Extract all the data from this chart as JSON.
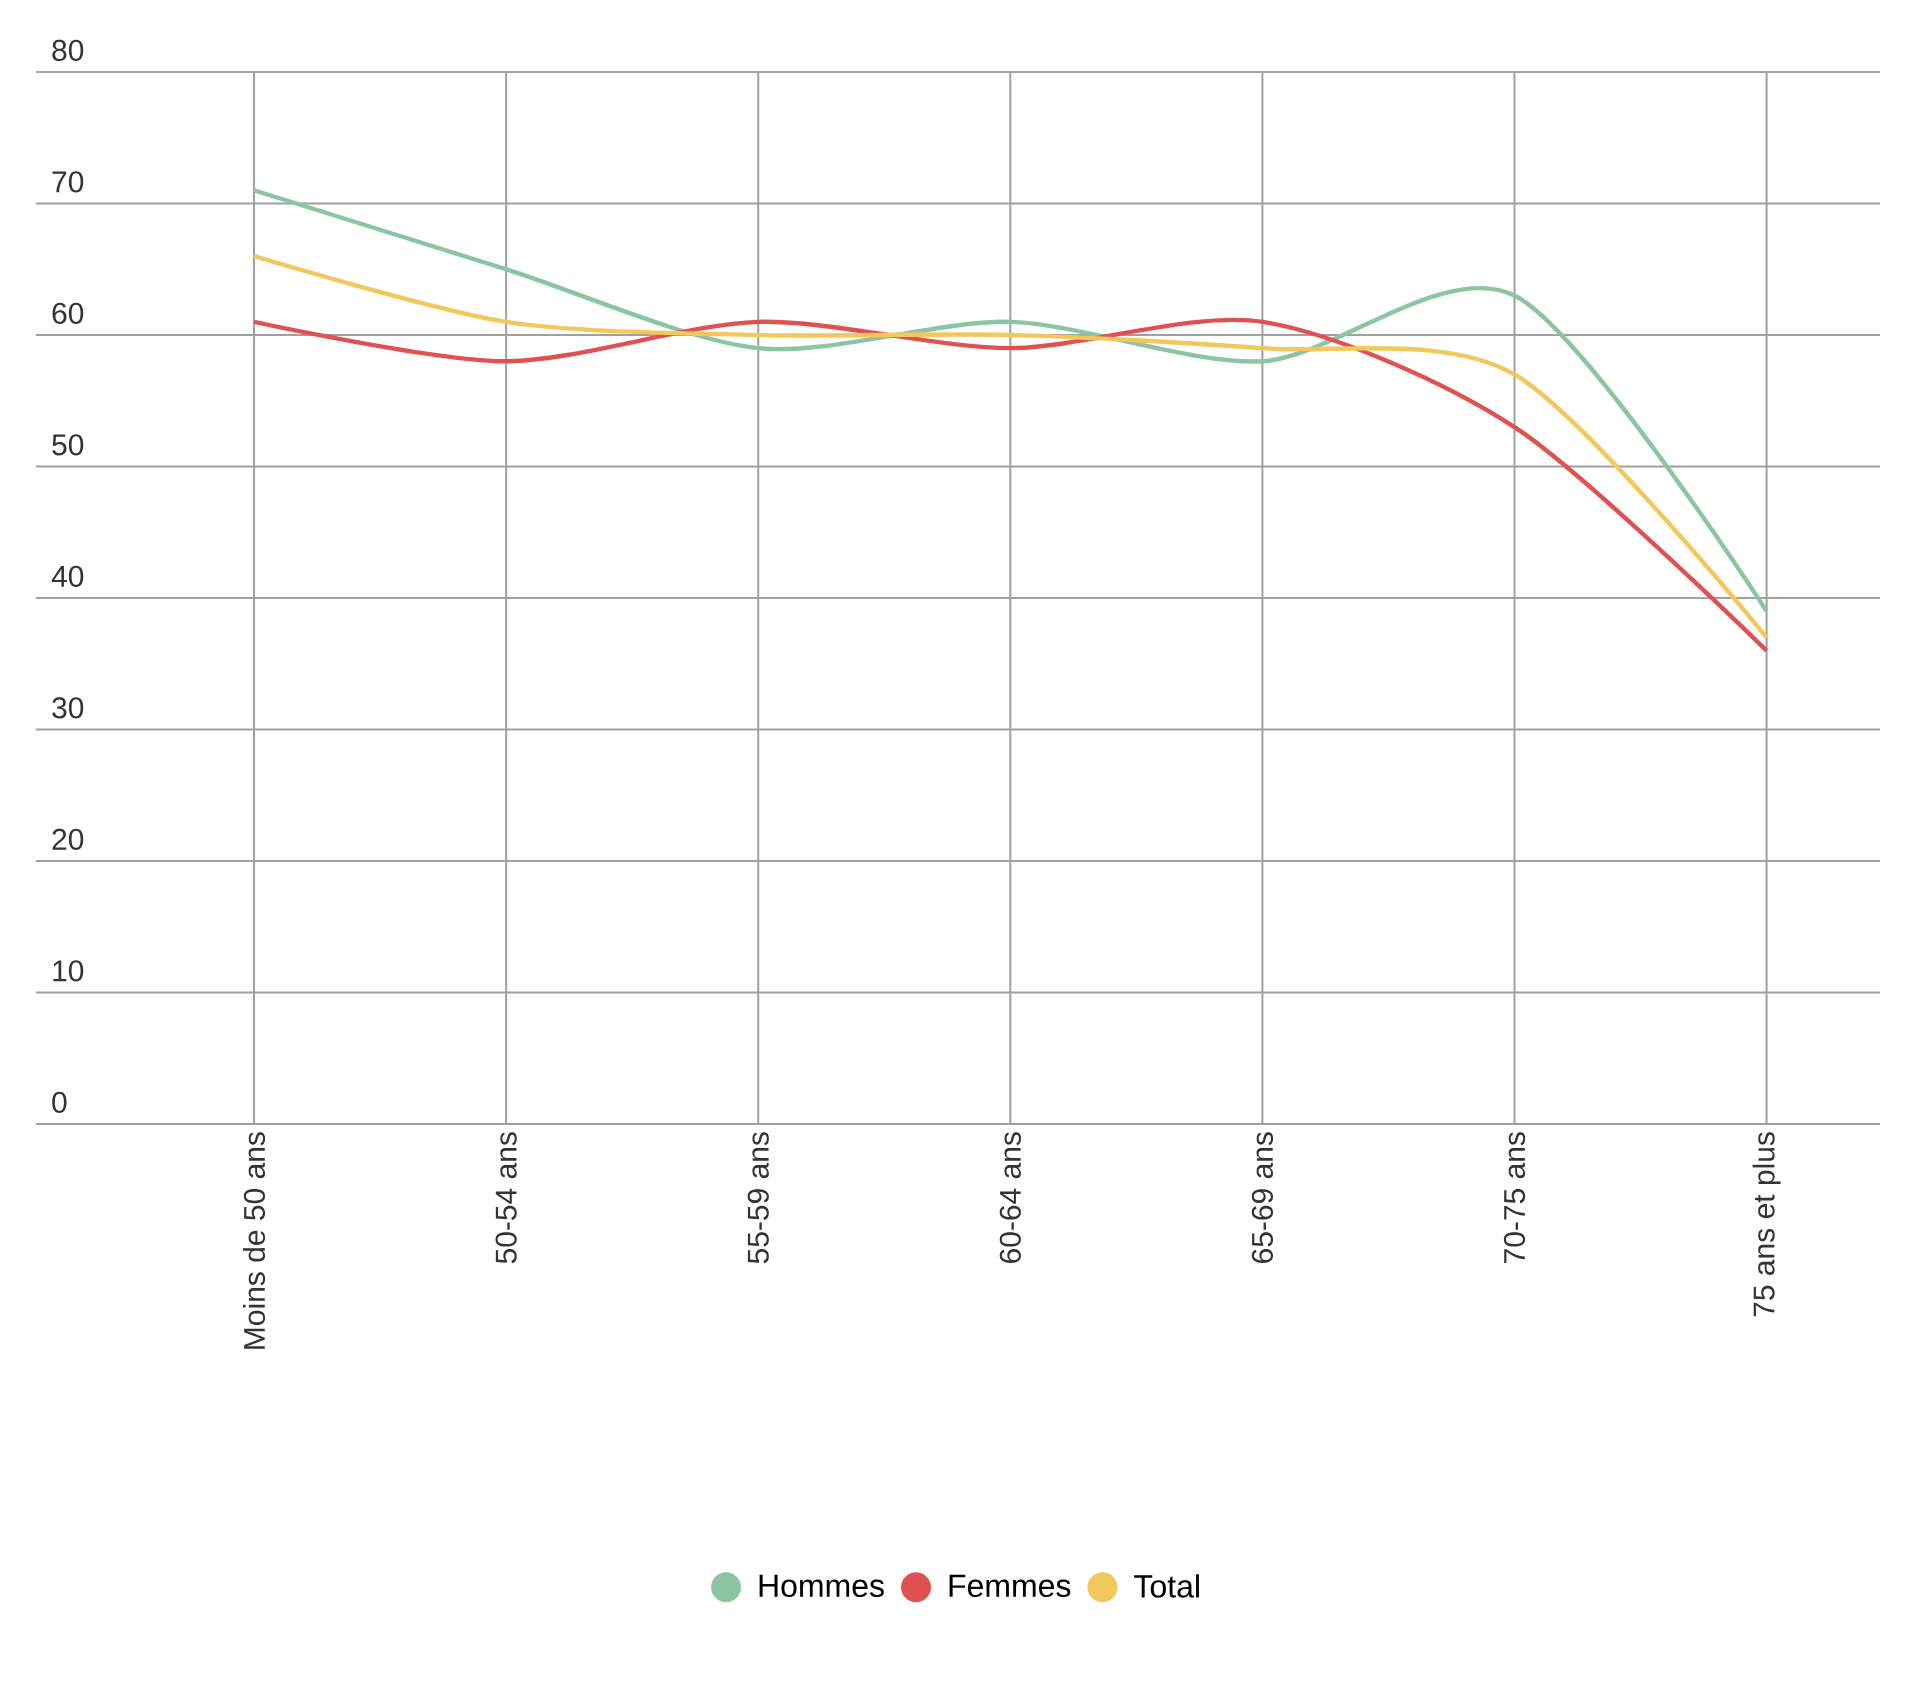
{
  "chart_data": {
    "type": "line",
    "categories": [
      "Moins de 50 ans",
      "50-54 ans",
      "55-59 ans",
      "60-64 ans",
      "65-69 ans",
      "70-75 ans",
      "75 ans et plus"
    ],
    "series": [
      {
        "name": "Hommes",
        "color": "#8cc5a2",
        "values": [
          71,
          65,
          59,
          61,
          58,
          63,
          39
        ]
      },
      {
        "name": "Femmes",
        "color": "#e05252",
        "values": [
          61,
          58,
          61,
          59,
          61,
          53,
          36
        ]
      },
      {
        "name": "Total",
        "color": "#f2c75c",
        "values": [
          66,
          61,
          60,
          60,
          59,
          57,
          37
        ]
      }
    ],
    "ylim": [
      0,
      80
    ],
    "yticks": [
      0,
      10,
      20,
      30,
      40,
      50,
      60,
      70,
      80
    ],
    "grid": true,
    "legend": "bottom",
    "line_style": "solid"
  }
}
